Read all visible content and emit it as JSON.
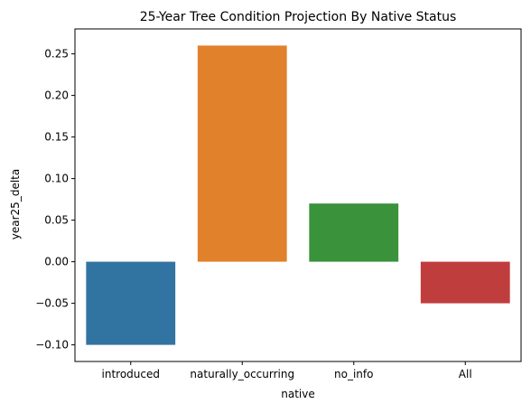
{
  "chart_data": {
    "type": "bar",
    "title": "25-Year Tree Condition Projection By Native Status",
    "xlabel": "native",
    "ylabel": "year25_delta",
    "categories": [
      "introduced",
      "naturally_occurring",
      "no_info",
      "All"
    ],
    "values": [
      -0.1,
      0.26,
      0.07,
      -0.05
    ],
    "colors": [
      "#3274a1",
      "#e1812c",
      "#3a923a",
      "#c03d3e"
    ],
    "ylim": [
      -0.12,
      0.28
    ],
    "yticks": [
      -0.1,
      -0.05,
      0.0,
      0.05,
      0.1,
      0.15,
      0.2,
      0.25
    ],
    "ytick_labels": [
      "−0.10",
      "−0.05",
      "0.00",
      "0.05",
      "0.10",
      "0.15",
      "0.20",
      "0.25"
    ],
    "grid": false,
    "legend": "none"
  }
}
